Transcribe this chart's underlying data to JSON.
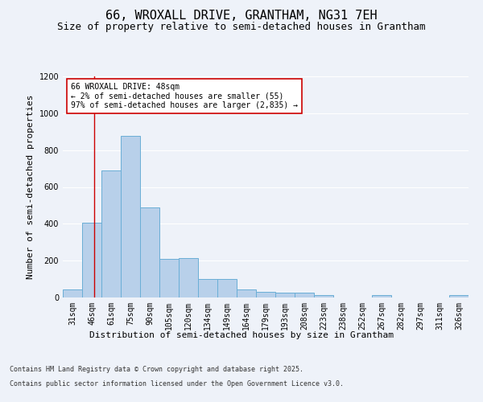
{
  "title_line1": "66, WROXALL DRIVE, GRANTHAM, NG31 7EH",
  "title_line2": "Size of property relative to semi-detached houses in Grantham",
  "xlabel": "Distribution of semi-detached houses by size in Grantham",
  "ylabel": "Number of semi-detached properties",
  "categories": [
    "31sqm",
    "46sqm",
    "61sqm",
    "75sqm",
    "90sqm",
    "105sqm",
    "120sqm",
    "134sqm",
    "149sqm",
    "164sqm",
    "179sqm",
    "193sqm",
    "208sqm",
    "223sqm",
    "238sqm",
    "252sqm",
    "267sqm",
    "282sqm",
    "297sqm",
    "311sqm",
    "326sqm"
  ],
  "values": [
    45,
    405,
    690,
    875,
    490,
    210,
    215,
    100,
    100,
    45,
    30,
    25,
    25,
    15,
    0,
    0,
    12,
    0,
    0,
    0,
    12
  ],
  "bar_color": "#b8d0ea",
  "bar_edge_color": "#6aaed6",
  "annotation_text_line1": "66 WROXALL DRIVE: 48sqm",
  "annotation_text_line2": "← 2% of semi-detached houses are smaller (55)",
  "annotation_text_line3": "97% of semi-detached houses are larger (2,835) →",
  "annotation_box_facecolor": "#ffffff",
  "annotation_box_edgecolor": "#cc0000",
  "vline_color": "#cc0000",
  "vline_x": 1.13,
  "ylim": [
    0,
    1200
  ],
  "yticks": [
    0,
    200,
    400,
    600,
    800,
    1000,
    1200
  ],
  "bg_color": "#eef2f9",
  "plot_bg_color": "#eef2f9",
  "grid_color": "#ffffff",
  "footer_line1": "Contains HM Land Registry data © Crown copyright and database right 2025.",
  "footer_line2": "Contains public sector information licensed under the Open Government Licence v3.0.",
  "title_fontsize": 11,
  "subtitle_fontsize": 9,
  "axis_label_fontsize": 8,
  "tick_fontsize": 7,
  "annotation_fontsize": 7,
  "footer_fontsize": 6,
  "ylabel_fontsize": 8
}
